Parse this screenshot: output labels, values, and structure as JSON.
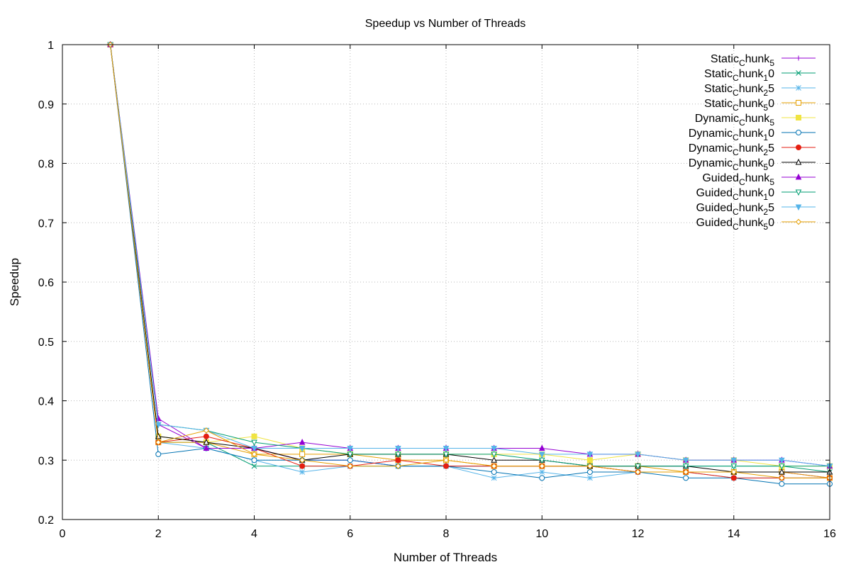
{
  "chart_data": {
    "type": "line",
    "title": "Speedup vs Number of Threads",
    "xlabel": "Number of Threads",
    "ylabel": "Speedup",
    "xlim": [
      0,
      16
    ],
    "ylim": [
      0.2,
      1.0
    ],
    "xticks": [
      "0",
      "2",
      "4",
      "6",
      "8",
      "10",
      "12",
      "14",
      "16"
    ],
    "yticks": [
      "0.2",
      "0.3",
      "0.4",
      "0.5",
      "0.6",
      "0.7",
      "0.8",
      "0.9",
      "1"
    ],
    "grid": true,
    "legend_position": "top-right",
    "x": [
      1,
      2,
      3,
      4,
      5,
      6,
      7,
      8,
      9,
      10,
      11,
      12,
      13,
      14,
      15,
      16
    ],
    "series": [
      {
        "name_base": "Static",
        "name_sub": "C",
        "name_mid": "hunk",
        "name_sub2": "5",
        "name_tail": "",
        "color": "#9400d3",
        "marker": "plus",
        "values": [
          1.0,
          0.36,
          0.32,
          0.32,
          0.3,
          0.3,
          0.29,
          0.29,
          0.29,
          0.29,
          0.29,
          0.28,
          0.28,
          0.28,
          0.28,
          0.27
        ]
      },
      {
        "name_base": "Static",
        "name_sub": "C",
        "name_mid": "hunk",
        "name_sub2": "1",
        "name_tail": "0",
        "color": "#009e73",
        "marker": "x",
        "values": [
          1.0,
          0.33,
          0.33,
          0.29,
          0.29,
          0.29,
          0.29,
          0.29,
          0.29,
          0.29,
          0.29,
          0.29,
          0.29,
          0.29,
          0.29,
          0.28
        ]
      },
      {
        "name_base": "Static",
        "name_sub": "C",
        "name_mid": "hunk",
        "name_sub2": "2",
        "name_tail": "5",
        "color": "#56b4e9",
        "marker": "star",
        "values": [
          1.0,
          0.33,
          0.32,
          0.3,
          0.28,
          0.29,
          0.29,
          0.29,
          0.27,
          0.28,
          0.27,
          0.28,
          0.28,
          0.27,
          0.27,
          0.27
        ]
      },
      {
        "name_base": "Static",
        "name_sub": "C",
        "name_mid": "hunk",
        "name_sub2": "5",
        "name_tail": "0",
        "color": "#e69f00",
        "marker": "square-open",
        "values": [
          1.0,
          0.33,
          0.33,
          0.31,
          0.31,
          0.31,
          0.3,
          0.3,
          0.29,
          0.29,
          0.29,
          0.29,
          0.28,
          0.28,
          0.28,
          0.27
        ]
      },
      {
        "name_base": "Dynamic",
        "name_sub": "C",
        "name_mid": "hunk",
        "name_sub2": "5",
        "name_tail": "",
        "color": "#f0e442",
        "marker": "square-filled",
        "values": [
          1.0,
          0.34,
          0.33,
          0.34,
          0.32,
          0.31,
          0.31,
          0.31,
          0.31,
          0.31,
          0.3,
          0.31,
          0.3,
          0.3,
          0.29,
          0.29
        ]
      },
      {
        "name_base": "Dynamic",
        "name_sub": "C",
        "name_mid": "hunk",
        "name_sub2": "1",
        "name_tail": "0",
        "color": "#0072b2",
        "marker": "circle-open",
        "values": [
          1.0,
          0.31,
          0.32,
          0.3,
          0.3,
          0.3,
          0.29,
          0.29,
          0.28,
          0.27,
          0.28,
          0.28,
          0.27,
          0.27,
          0.26,
          0.26
        ]
      },
      {
        "name_base": "Dynamic",
        "name_sub": "C",
        "name_mid": "hunk",
        "name_sub2": "2",
        "name_tail": "5",
        "color": "#e51e10",
        "marker": "circle-filled",
        "values": [
          1.0,
          0.33,
          0.34,
          0.32,
          0.29,
          0.29,
          0.3,
          0.29,
          0.29,
          0.29,
          0.29,
          0.28,
          0.28,
          0.27,
          0.27,
          0.27
        ]
      },
      {
        "name_base": "Dynamic",
        "name_sub": "C",
        "name_mid": "hunk",
        "name_sub2": "5",
        "name_tail": "0",
        "color": "#000000",
        "marker": "triangle-open",
        "values": [
          1.0,
          0.34,
          0.33,
          0.32,
          0.3,
          0.31,
          0.31,
          0.31,
          0.3,
          0.3,
          0.29,
          0.29,
          0.29,
          0.28,
          0.28,
          0.28
        ]
      },
      {
        "name_base": "Guided",
        "name_sub": "C",
        "name_mid": "hunk",
        "name_sub2": "5",
        "name_tail": "",
        "color": "#9400d3",
        "marker": "triangle-filled",
        "values": [
          1.0,
          0.37,
          0.32,
          0.32,
          0.33,
          0.32,
          0.32,
          0.32,
          0.32,
          0.32,
          0.31,
          0.31,
          0.3,
          0.3,
          0.3,
          0.29
        ]
      },
      {
        "name_base": "Guided",
        "name_sub": "C",
        "name_mid": "hunk",
        "name_sub2": "1",
        "name_tail": "0",
        "color": "#009e73",
        "marker": "triangle-down-open",
        "values": [
          1.0,
          0.36,
          0.35,
          0.33,
          0.32,
          0.31,
          0.31,
          0.31,
          0.31,
          0.3,
          0.29,
          0.29,
          0.29,
          0.29,
          0.29,
          0.29
        ]
      },
      {
        "name_base": "Guided",
        "name_sub": "C",
        "name_mid": "hunk",
        "name_sub2": "2",
        "name_tail": "5",
        "color": "#56b4e9",
        "marker": "triangle-down-filled",
        "values": [
          1.0,
          0.36,
          0.35,
          0.32,
          0.32,
          0.32,
          0.32,
          0.32,
          0.32,
          0.31,
          0.31,
          0.31,
          0.3,
          0.3,
          0.3,
          0.29
        ]
      },
      {
        "name_base": "Guided",
        "name_sub": "C",
        "name_mid": "hunk",
        "name_sub2": "5",
        "name_tail": "0",
        "color": "#e69f00",
        "marker": "diamond-open",
        "values": [
          1.0,
          0.33,
          0.35,
          0.31,
          0.3,
          0.29,
          0.29,
          0.3,
          0.29,
          0.29,
          0.29,
          0.28,
          0.28,
          0.28,
          0.27,
          0.27
        ]
      }
    ]
  }
}
